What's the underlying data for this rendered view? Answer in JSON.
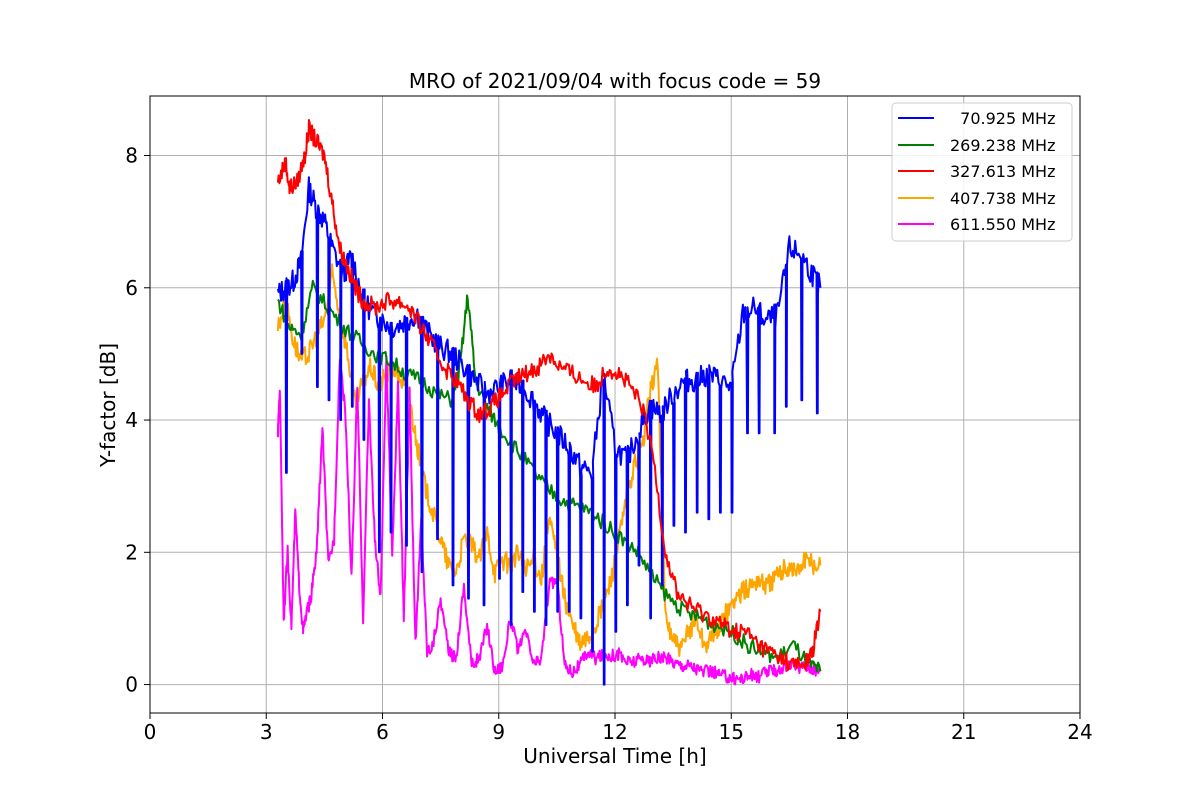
{
  "chart_data": {
    "type": "line",
    "title": "MRO of 2021/09/04 with focus code = 59",
    "xlabel": "Universal Time [h]",
    "ylabel": "Y-factor [dB]",
    "xlim": [
      0,
      24
    ],
    "ylim": [
      -0.43,
      8.9
    ],
    "xticks": [
      "0",
      "3",
      "6",
      "9",
      "12",
      "15",
      "18",
      "21",
      "24"
    ],
    "yticks": [
      "0",
      "2",
      "4",
      "6",
      "8"
    ],
    "grid": true,
    "legend_position": "top-right",
    "series": [
      {
        "name": "  70.925 MHz",
        "color": "#0000ff",
        "x": [
          3.3,
          3.5,
          3.7,
          3.9,
          4.1,
          4.3,
          4.5,
          4.7,
          5.0,
          5.2,
          5.5,
          5.8,
          6.0,
          6.3,
          6.6,
          6.9,
          7.2,
          7.5,
          7.8,
          8.1,
          8.4,
          8.7,
          9.0,
          9.3,
          9.6,
          9.9,
          10.2,
          10.5,
          10.8,
          11.1,
          11.4,
          11.7,
          12.0,
          12.3,
          12.6,
          12.9,
          13.2,
          13.5,
          13.8,
          14.1,
          14.4,
          14.7,
          15.0,
          15.3,
          15.6,
          15.9,
          16.2,
          16.5,
          16.8,
          17.1,
          17.3
        ],
        "y": [
          5.9,
          6.0,
          6.1,
          6.4,
          7.5,
          7.2,
          7.0,
          6.6,
          6.2,
          6.5,
          5.8,
          5.6,
          5.5,
          5.4,
          5.5,
          5.6,
          5.3,
          5.1,
          5.0,
          4.8,
          4.6,
          4.4,
          4.5,
          4.6,
          4.5,
          4.3,
          4.0,
          3.8,
          3.6,
          3.3,
          3.2,
          4.7,
          3.6,
          3.4,
          3.8,
          4.2,
          4.1,
          4.4,
          4.6,
          4.6,
          4.7,
          4.6,
          4.5,
          5.6,
          5.7,
          5.5,
          5.6,
          6.6,
          6.5,
          6.2,
          6.0
        ],
        "dips": [
          [
            3.5,
            3.2
          ],
          [
            3.9,
            5.0
          ],
          [
            4.3,
            4.5
          ],
          [
            4.6,
            4.3
          ],
          [
            4.9,
            4.0
          ],
          [
            5.2,
            4.2
          ],
          [
            5.5,
            3.7
          ],
          [
            5.9,
            2.0
          ],
          [
            6.2,
            2.3
          ],
          [
            6.6,
            2.1
          ],
          [
            7.0,
            1.7
          ],
          [
            7.4,
            2.2
          ],
          [
            7.8,
            1.5
          ],
          [
            8.2,
            1.3
          ],
          [
            8.6,
            1.2
          ],
          [
            9.0,
            1.6
          ],
          [
            9.3,
            0.9
          ],
          [
            9.6,
            1.4
          ],
          [
            9.9,
            1.1
          ],
          [
            10.2,
            0.9
          ],
          [
            10.5,
            1.1
          ],
          [
            10.8,
            1.1
          ],
          [
            11.1,
            1.0
          ],
          [
            11.4,
            0.5
          ],
          [
            11.7,
            0.0
          ],
          [
            12.0,
            0.8
          ],
          [
            12.3,
            1.2
          ],
          [
            12.6,
            1.8
          ],
          [
            12.9,
            1.0
          ],
          [
            13.2,
            1.5
          ],
          [
            13.5,
            2.4
          ],
          [
            13.8,
            2.3
          ],
          [
            14.1,
            2.6
          ],
          [
            14.4,
            2.5
          ],
          [
            14.7,
            2.6
          ],
          [
            15.0,
            2.6
          ],
          [
            15.4,
            3.8
          ],
          [
            15.7,
            3.8
          ],
          [
            16.1,
            3.8
          ],
          [
            16.4,
            4.2
          ],
          [
            16.8,
            4.3
          ],
          [
            17.2,
            4.1
          ]
        ]
      },
      {
        "name": "269.238 MHz",
        "color": "#008000",
        "x": [
          3.3,
          3.6,
          3.9,
          4.2,
          4.6,
          5.0,
          5.4,
          5.8,
          6.2,
          6.6,
          7.0,
          7.4,
          7.8,
          8.0,
          8.2,
          8.4,
          8.7,
          9.0,
          9.4,
          9.8,
          10.2,
          10.6,
          11.0,
          11.4,
          11.8,
          12.2,
          12.6,
          13.0,
          13.4,
          13.8,
          14.2,
          14.6,
          15.0,
          15.4,
          15.8,
          16.2,
          16.6,
          17.0,
          17.3
        ],
        "y": [
          5.8,
          5.4,
          5.3,
          6.0,
          5.7,
          5.4,
          5.2,
          5.0,
          4.9,
          4.7,
          4.6,
          4.4,
          4.3,
          4.8,
          5.9,
          4.6,
          4.2,
          3.9,
          3.6,
          3.3,
          3.0,
          2.8,
          2.7,
          2.6,
          2.4,
          2.2,
          2.0,
          1.6,
          1.3,
          1.1,
          1.0,
          0.9,
          0.8,
          0.6,
          0.5,
          0.4,
          0.6,
          0.3,
          0.2
        ]
      },
      {
        "name": "327.613 MHz",
        "color": "#ff0000",
        "x": [
          3.3,
          3.5,
          3.6,
          3.8,
          4.0,
          4.1,
          4.3,
          4.5,
          4.7,
          4.9,
          5.1,
          5.3,
          5.5,
          5.8,
          6.1,
          6.4,
          6.7,
          7.0,
          7.3,
          7.6,
          7.9,
          8.2,
          8.5,
          8.8,
          9.1,
          9.4,
          9.7,
          10.0,
          10.3,
          10.6,
          10.9,
          11.2,
          11.5,
          11.8,
          12.1,
          12.4,
          12.7,
          13.0,
          13.3,
          13.6,
          13.9,
          14.2,
          14.5,
          14.8,
          15.1,
          15.4,
          15.7,
          16.0,
          16.3,
          16.6,
          16.9,
          17.1,
          17.3
        ],
        "y": [
          7.6,
          7.9,
          7.5,
          7.6,
          8.0,
          8.4,
          8.2,
          8.0,
          7.3,
          6.6,
          6.3,
          6.0,
          5.8,
          5.7,
          5.8,
          5.8,
          5.7,
          5.4,
          5.1,
          4.8,
          4.6,
          4.3,
          4.1,
          4.2,
          4.4,
          4.6,
          4.7,
          4.8,
          5.0,
          4.8,
          4.7,
          4.6,
          4.5,
          4.8,
          4.7,
          4.5,
          4.2,
          3.4,
          2.0,
          1.4,
          1.2,
          1.1,
          1.0,
          0.9,
          0.8,
          0.8,
          0.6,
          0.5,
          0.4,
          0.3,
          0.3,
          0.5,
          1.1
        ]
      },
      {
        "name": "407.738 MHz",
        "color": "#ffa500",
        "x": [
          3.3,
          3.5,
          3.7,
          3.9,
          4.1,
          4.3,
          4.5,
          4.7,
          4.9,
          5.1,
          5.3,
          5.5,
          5.7,
          5.9,
          6.1,
          6.3,
          6.5,
          6.7,
          6.9,
          7.1,
          7.3,
          7.5,
          7.7,
          7.9,
          8.1,
          8.3,
          8.5,
          8.7,
          8.9,
          9.1,
          9.3,
          9.5,
          9.7,
          9.9,
          10.1,
          10.3,
          10.5,
          10.7,
          10.9,
          11.1,
          11.3,
          11.5,
          11.7,
          11.9,
          12.1,
          12.3,
          12.5,
          12.7,
          12.9,
          13.1,
          13.3,
          13.5,
          13.7,
          13.9,
          14.1,
          14.3,
          14.5,
          14.7,
          14.9,
          15.1,
          15.3,
          15.5,
          15.7,
          15.9,
          16.1,
          16.3,
          16.5,
          16.7,
          16.9,
          17.1,
          17.3
        ],
        "y": [
          5.4,
          5.8,
          5.2,
          4.9,
          5.0,
          5.3,
          5.5,
          6.2,
          5.6,
          5.0,
          4.2,
          4.6,
          4.8,
          4.5,
          4.7,
          4.8,
          4.6,
          4.3,
          3.6,
          3.0,
          2.6,
          2.2,
          1.8,
          1.7,
          2.2,
          2.1,
          1.9,
          2.3,
          1.7,
          1.9,
          1.8,
          2.0,
          1.7,
          1.9,
          1.6,
          2.5,
          2.0,
          1.3,
          0.9,
          0.6,
          0.7,
          0.9,
          1.2,
          1.6,
          2.2,
          2.8,
          3.3,
          3.6,
          4.4,
          4.9,
          1.0,
          0.7,
          0.5,
          0.8,
          1.0,
          0.6,
          0.7,
          0.9,
          1.1,
          1.3,
          1.4,
          1.5,
          1.6,
          1.5,
          1.6,
          1.7,
          1.8,
          1.7,
          1.9,
          1.8,
          1.8
        ]
      },
      {
        "name": "611.550 MHz",
        "color": "#ff00ff",
        "x": [
          3.3,
          3.35,
          3.45,
          3.55,
          3.65,
          3.75,
          3.85,
          3.95,
          4.05,
          4.15,
          4.3,
          4.45,
          4.6,
          4.75,
          4.9,
          5.05,
          5.2,
          5.35,
          5.5,
          5.65,
          5.8,
          5.95,
          6.1,
          6.25,
          6.4,
          6.55,
          6.7,
          6.85,
          7.0,
          7.15,
          7.3,
          7.5,
          7.7,
          7.9,
          8.1,
          8.3,
          8.5,
          8.7,
          8.9,
          9.1,
          9.3,
          9.5,
          9.7,
          9.9,
          10.1,
          10.3,
          10.5,
          10.7,
          10.9,
          11.1,
          11.3,
          11.5,
          11.7,
          11.9,
          12.1,
          12.3,
          12.5,
          12.7,
          12.9,
          13.1,
          13.3,
          13.5,
          13.7,
          13.9,
          14.1,
          14.3,
          14.5,
          14.7,
          14.9,
          15.1,
          15.3,
          15.5,
          15.7,
          15.9,
          16.1,
          16.3,
          16.5,
          16.7,
          16.9,
          17.1,
          17.3
        ],
        "y": [
          3.8,
          4.5,
          1.0,
          2.0,
          0.9,
          2.6,
          1.5,
          0.8,
          1.1,
          1.3,
          2.0,
          3.9,
          1.8,
          2.2,
          5.0,
          4.0,
          1.6,
          4.5,
          1.0,
          4.3,
          2.2,
          1.3,
          4.9,
          2.0,
          4.5,
          1.0,
          4.4,
          0.6,
          2.5,
          0.5,
          0.6,
          1.3,
          0.5,
          0.4,
          1.5,
          0.3,
          0.4,
          0.9,
          0.2,
          0.3,
          1.0,
          0.5,
          0.8,
          0.3,
          0.4,
          1.5,
          1.6,
          0.3,
          0.2,
          0.3,
          0.5,
          0.4,
          0.45,
          0.45,
          0.45,
          0.35,
          0.35,
          0.4,
          0.35,
          0.4,
          0.4,
          0.35,
          0.3,
          0.3,
          0.25,
          0.2,
          0.2,
          0.15,
          0.12,
          0.1,
          0.1,
          0.15,
          0.12,
          0.2,
          0.2,
          0.25,
          0.3,
          0.25,
          0.3,
          0.25,
          0.2
        ]
      }
    ]
  }
}
